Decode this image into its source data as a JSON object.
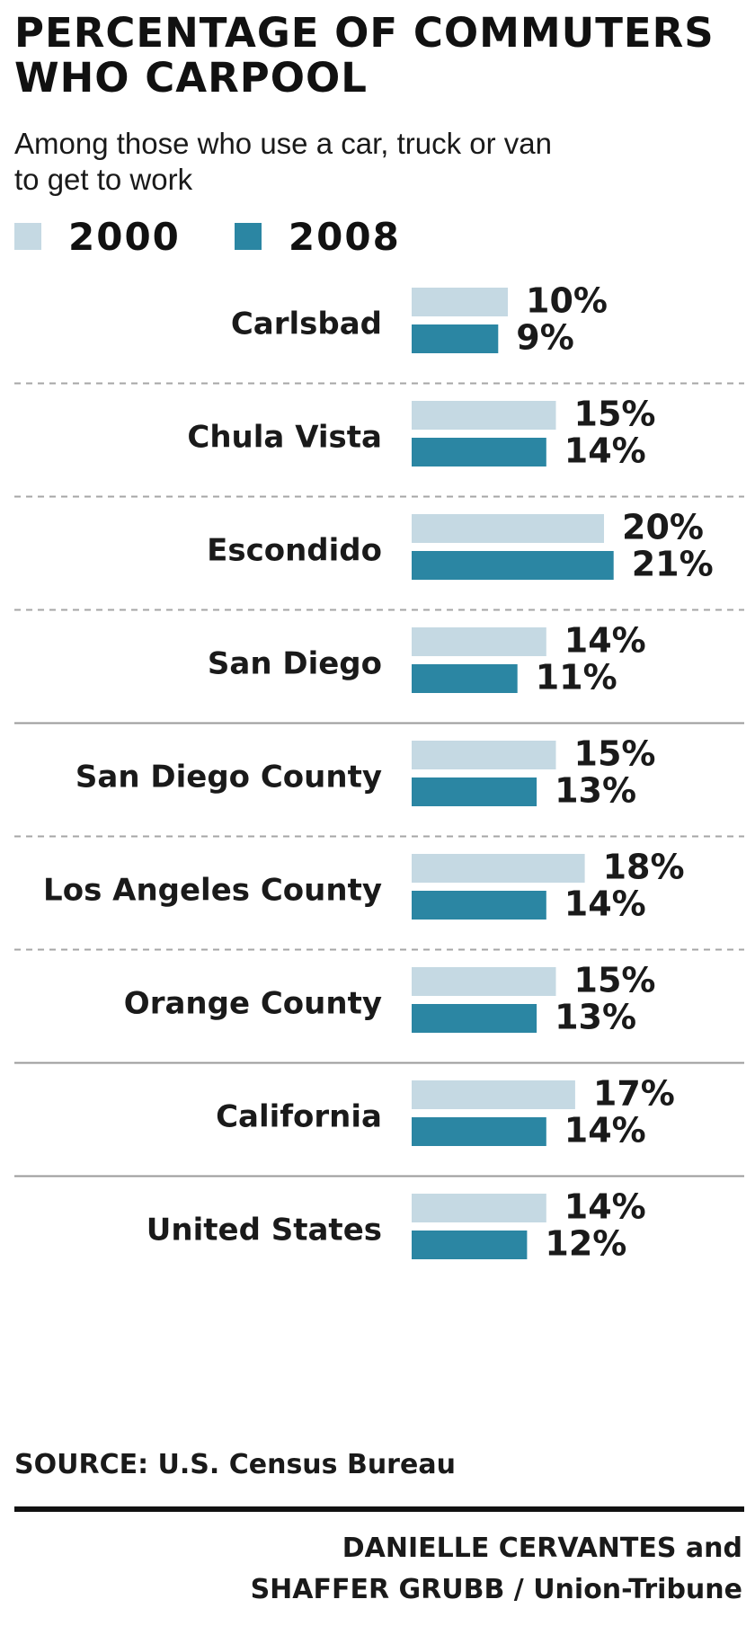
{
  "title": {
    "line1": "PERCENTAGE OF COMMUTERS",
    "line2": "WHO CARPOOL"
  },
  "subtitle": {
    "line1": "Among those who use a car, truck or van",
    "line2": "to get to work"
  },
  "colors": {
    "series_2000": "#c5d9e3",
    "series_2008": "#2b86a3",
    "divider_dashed": "#a6a6a6",
    "divider_solid": "#9a9a9a"
  },
  "chart_data": {
    "type": "bar",
    "orientation": "horizontal",
    "categories": [
      "Carlsbad",
      "Chula Vista",
      "Escondido",
      "San Diego",
      "San Diego County",
      "Los Angeles County",
      "Orange County",
      "California",
      "United States"
    ],
    "series": [
      {
        "name": "2000",
        "values": [
          10,
          15,
          20,
          14,
          15,
          18,
          15,
          17,
          14
        ]
      },
      {
        "name": "2008",
        "values": [
          9,
          14,
          21,
          11,
          13,
          14,
          13,
          14,
          12
        ]
      }
    ],
    "value_labels": {
      "2000": [
        "10%",
        "15%",
        "20%",
        "14%",
        "15%",
        "18%",
        "15%",
        "17%",
        "14%"
      ],
      "2008": [
        "9%",
        "14%",
        "21%",
        "11%",
        "13%",
        "14%",
        "13%",
        "14%",
        "12%"
      ]
    },
    "legend": "top-left",
    "unit": "%"
  },
  "source": "SOURCE: U.S. Census Bureau",
  "credit": {
    "line1": "DANIELLE CERVANTES and",
    "line2": "SHAFFER GRUBB / Union-Tribune"
  }
}
